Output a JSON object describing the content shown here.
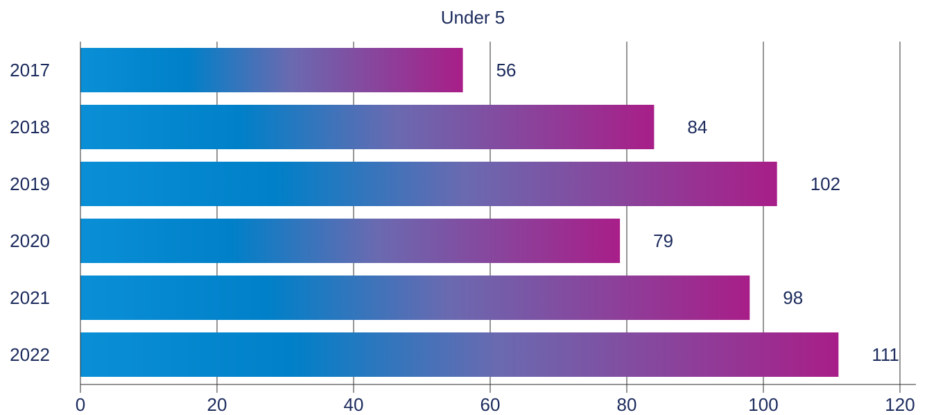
{
  "chart_data": {
    "type": "bar",
    "orientation": "horizontal",
    "title": "Under 5",
    "xlabel": "",
    "ylabel": "",
    "categories": [
      "2017",
      "2018",
      "2019",
      "2020",
      "2021",
      "2022"
    ],
    "values": [
      56,
      84,
      102,
      79,
      98,
      111
    ],
    "data_labels": [
      "56",
      "84",
      "102",
      "79",
      "98",
      "111"
    ],
    "xlim": [
      0,
      120
    ],
    "x_ticks": [
      0,
      20,
      40,
      60,
      80,
      100,
      120
    ],
    "grid": "vertical",
    "legend": "none"
  },
  "colors": {
    "bar_gradient_start": "#0086cc",
    "bar_gradient_mid": "#5573b6",
    "bar_gradient_end": "#a3208a",
    "text": "#1b2a5c",
    "grid": "#2b2b2b"
  }
}
